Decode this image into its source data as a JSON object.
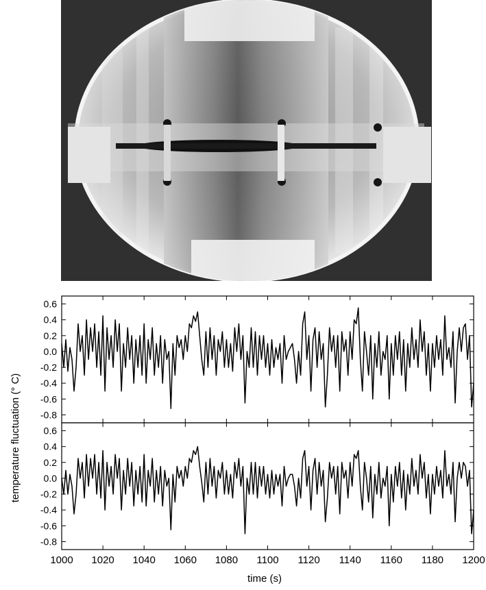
{
  "chart_data": {
    "type": "line",
    "xlabel": "time (s)",
    "ylabel": "temperature fluctuation (° C)",
    "xlim": [
      1000,
      1200
    ],
    "x_ticks": [
      "1000",
      "1020",
      "1040",
      "1060",
      "1080",
      "1100",
      "1120",
      "1140",
      "1160",
      "1180",
      "1200"
    ],
    "panels": [
      {
        "ylim": [
          -0.9,
          0.7
        ],
        "y_ticks": [
          "0.6",
          "0.4",
          "0.2",
          "0.0",
          "-0.2",
          "-0.4",
          "-0.6",
          "-0.8"
        ],
        "series": [
          {
            "x": [
              1000,
              1001,
              1002,
              1003,
              1004,
              1005,
              1006,
              1007,
              1008,
              1009,
              1010,
              1011,
              1012,
              1013,
              1014,
              1015,
              1016,
              1017,
              1018,
              1019,
              1020,
              1021,
              1022,
              1023,
              1024,
              1025,
              1026,
              1027,
              1028,
              1029,
              1030,
              1031,
              1032,
              1033,
              1034,
              1035,
              1036,
              1037,
              1038,
              1039,
              1040,
              1041,
              1042,
              1043,
              1044,
              1045,
              1046,
              1047,
              1048,
              1049,
              1050,
              1051,
              1052,
              1053,
              1054,
              1055,
              1056,
              1057,
              1058,
              1059,
              1060,
              1061,
              1062,
              1063,
              1064,
              1065,
              1066,
              1067,
              1068,
              1069,
              1070,
              1071,
              1072,
              1073,
              1074,
              1075,
              1076,
              1077,
              1078,
              1079,
              1080,
              1081,
              1082,
              1083,
              1084,
              1085,
              1086,
              1087,
              1088,
              1089,
              1090,
              1091,
              1092,
              1093,
              1094,
              1095,
              1096,
              1097,
              1098,
              1099,
              1100,
              1101,
              1102,
              1103,
              1104,
              1105,
              1106,
              1107,
              1108,
              1109,
              1110,
              1111,
              1112,
              1113,
              1114,
              1115,
              1116,
              1117,
              1118,
              1119,
              1120,
              1121,
              1122,
              1123,
              1124,
              1125,
              1126,
              1127,
              1128,
              1129,
              1130,
              1131,
              1132,
              1133,
              1134,
              1135,
              1136,
              1137,
              1138,
              1139,
              1140,
              1141,
              1142,
              1143,
              1144,
              1145,
              1146,
              1147,
              1148,
              1149,
              1150,
              1151,
              1152,
              1153,
              1154,
              1155,
              1156,
              1157,
              1158,
              1159,
              1160,
              1161,
              1162,
              1163,
              1164,
              1165,
              1166,
              1167,
              1168,
              1169,
              1170,
              1171,
              1172,
              1173,
              1174,
              1175,
              1176,
              1177,
              1178,
              1179,
              1180,
              1181,
              1182,
              1183,
              1184,
              1185,
              1186,
              1187,
              1188,
              1189,
              1190,
              1191,
              1192,
              1193,
              1194,
              1195,
              1196,
              1197,
              1198,
              1199,
              1200
            ],
            "y": [
              0.1,
              -0.2,
              0.15,
              -0.25,
              0.05,
              -0.1,
              -0.5,
              -0.2,
              0.35,
              0.0,
              0.2,
              -0.3,
              0.4,
              -0.1,
              0.3,
              0.0,
              0.35,
              -0.2,
              0.25,
              -0.3,
              0.45,
              -0.5,
              0.3,
              -0.1,
              0.2,
              -0.2,
              0.4,
              0.0,
              0.35,
              -0.5,
              0.1,
              -0.2,
              0.3,
              -0.1,
              0.2,
              -0.4,
              0.15,
              -0.2,
              0.2,
              -0.3,
              0.35,
              -0.4,
              0.15,
              -0.1,
              0.3,
              -0.3,
              0.1,
              -0.2,
              0.2,
              -0.4,
              0.15,
              -0.1,
              0.0,
              -0.72,
              0.1,
              -0.3,
              0.2,
              0.05,
              0.15,
              -0.1,
              0.2,
              0.0,
              0.35,
              0.3,
              0.45,
              0.38,
              0.5,
              0.2,
              -0.1,
              -0.3,
              0.25,
              -0.2,
              0.3,
              -0.1,
              0.2,
              -0.3,
              0.15,
              0.0,
              0.25,
              -0.2,
              0.15,
              -0.2,
              0.1,
              -0.25,
              0.3,
              0.0,
              0.35,
              -0.1,
              0.2,
              -0.65,
              0.0,
              -0.2,
              0.3,
              -0.2,
              0.25,
              -0.3,
              0.2,
              -0.1,
              0.2,
              -0.2,
              0.1,
              -0.3,
              0.15,
              -0.2,
              0.05,
              -0.1,
              0.1,
              -0.4,
              0.2,
              -0.1,
              0.0,
              0.05,
              0.1,
              -0.1,
              -0.4,
              0.0,
              -0.3,
              0.35,
              0.5,
              -0.1,
              0.2,
              -0.5,
              0.15,
              0.3,
              -0.2,
              0.25,
              -0.1,
              0.1,
              -0.7,
              -0.3,
              0.3,
              0.0,
              0.2,
              -0.2,
              0.2,
              -0.5,
              0.25,
              0.0,
              0.15,
              -0.3,
              0.25,
              -0.1,
              0.4,
              0.35,
              0.55,
              -0.1,
              -0.5,
              0.25,
              0.0,
              -0.3,
              0.2,
              -0.6,
              0.1,
              -0.2,
              0.25,
              -0.3,
              0.0,
              -0.1,
              0.2,
              -0.6,
              0.1,
              -0.3,
              0.2,
              -0.1,
              0.25,
              -0.3,
              0.15,
              -0.5,
              0.1,
              -0.2,
              0.3,
              -0.1,
              0.15,
              -0.2,
              0.4,
              0.0,
              0.25,
              -0.3,
              0.1,
              -0.5,
              0.1,
              -0.2,
              0.2,
              -0.1,
              0.15,
              -0.3,
              0.45,
              -0.1,
              0.05,
              -0.2,
              0.25,
              -0.65,
              0.0,
              0.3,
              0.0,
              0.3,
              0.35,
              -0.1,
              0.2,
              -0.7,
              -0.4
            ]
          }
        ]
      },
      {
        "ylim": [
          -0.9,
          0.7
        ],
        "y_ticks": [
          "0.6",
          "0.4",
          "0.2",
          "0.0",
          "-0.2",
          "-0.4",
          "-0.6",
          "-0.8"
        ],
        "series": [
          {
            "x": [
              1000,
              1001,
              1002,
              1003,
              1004,
              1005,
              1006,
              1007,
              1008,
              1009,
              1010,
              1011,
              1012,
              1013,
              1014,
              1015,
              1016,
              1017,
              1018,
              1019,
              1020,
              1021,
              1022,
              1023,
              1024,
              1025,
              1026,
              1027,
              1028,
              1029,
              1030,
              1031,
              1032,
              1033,
              1034,
              1035,
              1036,
              1037,
              1038,
              1039,
              1040,
              1041,
              1042,
              1043,
              1044,
              1045,
              1046,
              1047,
              1048,
              1049,
              1050,
              1051,
              1052,
              1053,
              1054,
              1055,
              1056,
              1057,
              1058,
              1059,
              1060,
              1061,
              1062,
              1063,
              1064,
              1065,
              1066,
              1067,
              1068,
              1069,
              1070,
              1071,
              1072,
              1073,
              1074,
              1075,
              1076,
              1077,
              1078,
              1079,
              1080,
              1081,
              1082,
              1083,
              1084,
              1085,
              1086,
              1087,
              1088,
              1089,
              1090,
              1091,
              1092,
              1093,
              1094,
              1095,
              1096,
              1097,
              1098,
              1099,
              1100,
              1101,
              1102,
              1103,
              1104,
              1105,
              1106,
              1107,
              1108,
              1109,
              1110,
              1111,
              1112,
              1113,
              1114,
              1115,
              1116,
              1117,
              1118,
              1119,
              1120,
              1121,
              1122,
              1123,
              1124,
              1125,
              1126,
              1127,
              1128,
              1129,
              1130,
              1131,
              1132,
              1133,
              1134,
              1135,
              1136,
              1137,
              1138,
              1139,
              1140,
              1141,
              1142,
              1143,
              1144,
              1145,
              1146,
              1147,
              1148,
              1149,
              1150,
              1151,
              1152,
              1153,
              1154,
              1155,
              1156,
              1157,
              1158,
              1159,
              1160,
              1161,
              1162,
              1163,
              1164,
              1165,
              1166,
              1167,
              1168,
              1169,
              1170,
              1171,
              1172,
              1173,
              1174,
              1175,
              1176,
              1177,
              1178,
              1179,
              1180,
              1181,
              1182,
              1183,
              1184,
              1185,
              1186,
              1187,
              1188,
              1189,
              1190,
              1191,
              1192,
              1193,
              1194,
              1195,
              1196,
              1197,
              1198,
              1199,
              1200
            ],
            "y": [
              0.0,
              -0.2,
              0.1,
              -0.2,
              0.05,
              -0.1,
              -0.45,
              -0.2,
              0.25,
              0.0,
              0.2,
              -0.25,
              0.3,
              -0.1,
              0.25,
              0.0,
              0.3,
              -0.2,
              0.2,
              -0.25,
              0.35,
              -0.4,
              0.2,
              -0.1,
              0.15,
              -0.2,
              0.3,
              0.0,
              0.25,
              -0.4,
              0.1,
              -0.2,
              0.25,
              -0.1,
              0.2,
              -0.35,
              0.1,
              -0.2,
              0.15,
              -0.3,
              0.3,
              -0.35,
              0.1,
              -0.1,
              0.25,
              -0.3,
              0.1,
              -0.2,
              0.15,
              -0.35,
              0.1,
              -0.1,
              0.0,
              -0.65,
              0.05,
              -0.3,
              0.15,
              0.0,
              0.1,
              -0.1,
              0.15,
              0.0,
              0.25,
              0.2,
              0.35,
              0.3,
              0.4,
              0.15,
              -0.05,
              -0.3,
              0.2,
              -0.2,
              0.25,
              -0.1,
              0.15,
              -0.25,
              0.1,
              0.0,
              0.2,
              -0.2,
              0.1,
              -0.2,
              0.05,
              -0.25,
              0.2,
              0.0,
              0.25,
              -0.1,
              0.15,
              -0.7,
              0.0,
              -0.2,
              0.2,
              -0.2,
              0.2,
              -0.25,
              0.15,
              -0.1,
              0.15,
              -0.2,
              0.05,
              -0.25,
              0.1,
              -0.2,
              0.05,
              -0.1,
              0.05,
              -0.35,
              0.15,
              -0.1,
              0.0,
              0.05,
              0.05,
              -0.1,
              -0.35,
              0.0,
              -0.25,
              0.25,
              0.35,
              -0.1,
              0.15,
              -0.4,
              0.1,
              0.25,
              -0.2,
              0.2,
              -0.1,
              0.1,
              -0.55,
              -0.25,
              0.2,
              0.0,
              0.15,
              -0.2,
              0.15,
              -0.45,
              0.2,
              0.0,
              0.1,
              -0.25,
              0.2,
              -0.1,
              0.3,
              0.25,
              0.35,
              -0.1,
              -0.4,
              0.2,
              0.0,
              -0.3,
              0.15,
              -0.5,
              0.05,
              -0.2,
              0.2,
              -0.25,
              0.0,
              -0.1,
              0.15,
              -0.6,
              0.05,
              -0.3,
              0.15,
              -0.1,
              0.2,
              -0.25,
              0.1,
              -0.4,
              0.05,
              -0.2,
              0.25,
              -0.1,
              0.1,
              -0.2,
              0.3,
              0.0,
              0.2,
              -0.25,
              0.05,
              -0.45,
              0.05,
              -0.2,
              0.15,
              -0.1,
              0.1,
              -0.25,
              0.35,
              -0.1,
              0.05,
              -0.2,
              0.2,
              -0.55,
              0.0,
              0.2,
              0.0,
              0.2,
              0.15,
              -0.1,
              0.1,
              -0.7,
              -0.4
            ]
          }
        ]
      }
    ]
  }
}
